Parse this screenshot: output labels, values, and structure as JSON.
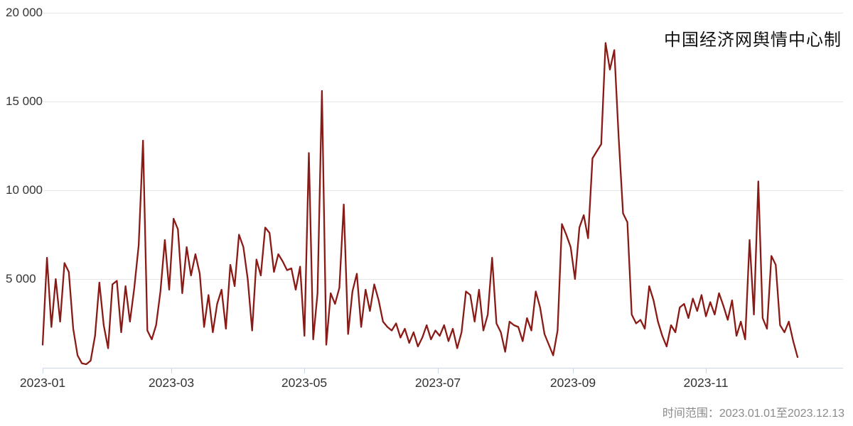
{
  "title": "中国经济网舆情中心制",
  "caption": "时间范围：2023.01.01至2023.12.13",
  "colors": {
    "line": "#8a1a15",
    "grid": "#e6e6e6",
    "axis": "#ccd6eb",
    "label": "#333333",
    "caption": "#8a8a8a"
  },
  "chart_data": {
    "type": "line",
    "title": "中国经济网舆情中心制",
    "x_range": [
      "2023-01-01",
      "2023-12-13"
    ],
    "ylim": [
      0,
      20000
    ],
    "y_ticks": [
      5000,
      10000,
      15000,
      20000
    ],
    "y_tick_labels": [
      "5 000",
      "10 000",
      "15 000",
      "20 000"
    ],
    "x_tick_labels": [
      "2023-01",
      "2023-03",
      "2023-05",
      "2023-07",
      "2023-09",
      "2023-11"
    ],
    "x_tick_days": [
      0,
      59,
      120,
      181,
      243,
      304
    ],
    "grid": true,
    "legend": "none",
    "day_start": 0,
    "day_step": 2,
    "total_days": 346,
    "series": [
      {
        "values": [
          1300,
          6200,
          2300,
          5000,
          2600,
          5900,
          5400,
          2200,
          700,
          250,
          200,
          400,
          1800,
          4800,
          2400,
          1100,
          4700,
          4900,
          2000,
          4600,
          2600,
          4500,
          6900,
          12800,
          2100,
          1600,
          2400,
          4300,
          7200,
          4400,
          8400,
          7800,
          4200,
          6800,
          5200,
          6400,
          5300,
          2300,
          4100,
          2000,
          3600,
          4400,
          2200,
          5800,
          4600,
          7500,
          6800,
          5000,
          2100,
          6100,
          5200,
          7900,
          7600,
          5400,
          6400,
          6000,
          5500,
          5600,
          4400,
          5700,
          1800,
          12100,
          1600,
          4200,
          15600,
          1300,
          4200,
          3600,
          4500,
          9200,
          1900,
          4300,
          5300,
          2300,
          4400,
          3200,
          4700,
          3800,
          2600,
          2300,
          2100,
          2500,
          1700,
          2200,
          1400,
          2000,
          1200,
          1700,
          2400,
          1600,
          2100,
          1800,
          2400,
          1500,
          2200,
          1100,
          2000,
          4300,
          4100,
          2600,
          4400,
          2100,
          3000,
          6200,
          2500,
          2000,
          900,
          2600,
          2400,
          2300,
          1500,
          2800,
          2100,
          4300,
          3400,
          1900,
          1300,
          700,
          2100,
          8100,
          7500,
          6800,
          5000,
          7900,
          8600,
          7300,
          11800,
          12200,
          12600,
          18300,
          16800,
          17900,
          13000,
          8700,
          8200,
          3000,
          2500,
          2700,
          2200,
          4600,
          3800,
          2600,
          1800,
          1200,
          2400,
          2000,
          3400,
          3600,
          2800,
          3900,
          3200,
          4100,
          2900,
          3700,
          3000,
          4200,
          3500,
          2700,
          3800,
          1800,
          2600,
          1600,
          7200,
          3000,
          10500,
          2800,
          2200,
          6300,
          5800,
          2400,
          2000,
          2600,
          1500,
          600
        ]
      }
    ]
  }
}
